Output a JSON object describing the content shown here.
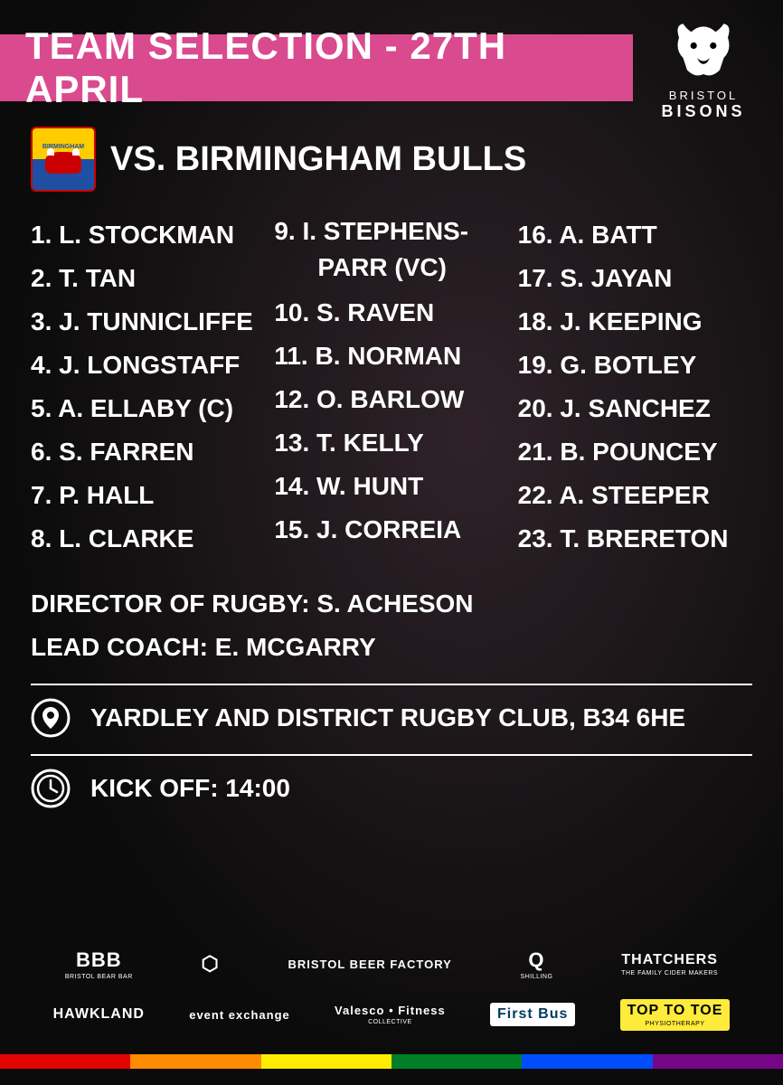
{
  "header": {
    "title": "Team Selection - 27th April",
    "bar_color": "#d94a8e"
  },
  "club": {
    "name_top": "BRISTOL",
    "name_bottom": "BISONS"
  },
  "opponent": {
    "vs_text": "vs. Birmingham Bulls",
    "badge_top": "BIRMINGHAM",
    "badge_bottom": "BULLS"
  },
  "roster": {
    "col1": [
      {
        "num": "1",
        "name": "L. Stockman"
      },
      {
        "num": "2",
        "name": "T. Tan"
      },
      {
        "num": "3",
        "name": "J. Tunnicliffe"
      },
      {
        "num": "4",
        "name": "J. Longstaff"
      },
      {
        "num": "5",
        "name": "A. Ellaby (C)"
      },
      {
        "num": "6",
        "name": "S. Farren"
      },
      {
        "num": "7",
        "name": "P. Hall"
      },
      {
        "num": "8",
        "name": "L. Clarke"
      }
    ],
    "col2": [
      {
        "num": "9",
        "name": "I. Stephens-",
        "name2": "Parr (VC)"
      },
      {
        "num": "10",
        "name": "S. Raven"
      },
      {
        "num": "11",
        "name": "B. Norman"
      },
      {
        "num": "12",
        "name": "O. Barlow"
      },
      {
        "num": "13",
        "name": "T. Kelly"
      },
      {
        "num": "14",
        "name": "W. Hunt"
      },
      {
        "num": "15",
        "name": "J. Correia"
      }
    ],
    "col3": [
      {
        "num": "16",
        "name": "A. Batt"
      },
      {
        "num": "17",
        "name": "S. Jayan"
      },
      {
        "num": "18",
        "name": "J. Keeping"
      },
      {
        "num": "19",
        "name": "G. Botley"
      },
      {
        "num": "20",
        "name": "J. Sanchez"
      },
      {
        "num": "21",
        "name": "B. Pouncey"
      },
      {
        "num": "22",
        "name": "A. Steeper"
      },
      {
        "num": "23",
        "name": "T. Brereton"
      }
    ]
  },
  "staff": {
    "director_label": "Director of Rugby:",
    "director_name": "S. Acheson",
    "coach_label": "Lead Coach:",
    "coach_name": "E. McGarry"
  },
  "venue": {
    "text": "Yardley and District Rugby Club, B34 6HE"
  },
  "kickoff": {
    "text": "Kick off: 14:00"
  },
  "sponsors": {
    "row1": [
      {
        "big": "BBB",
        "small": "BRISTOL BEAR BAR"
      },
      {
        "big": "⬡",
        "small": ""
      },
      {
        "big": "BRISTOL BEER FACTORY",
        "small": ""
      },
      {
        "big": "Q",
        "small": "SHILLING"
      },
      {
        "big": "THATCHERS",
        "small": "THE FAMILY CIDER MAKERS"
      }
    ],
    "row2": [
      {
        "big": "HAWKLAND",
        "small": ""
      },
      {
        "big": "event exchange",
        "small": ""
      },
      {
        "big": "Valesco • Fitness",
        "small": "COLLECTIVE"
      },
      {
        "big": "First Bus",
        "small": "",
        "bg": "#ffffff",
        "fg": "#003b5c"
      },
      {
        "big": "TOP TO TOE",
        "small": "PHYSIOTHERAPY",
        "bg": "#ffeb3b",
        "fg": "#000"
      }
    ]
  },
  "rainbow_colors": [
    "#e40303",
    "#ff8c00",
    "#ffed00",
    "#008026",
    "#004dff",
    "#750787"
  ]
}
